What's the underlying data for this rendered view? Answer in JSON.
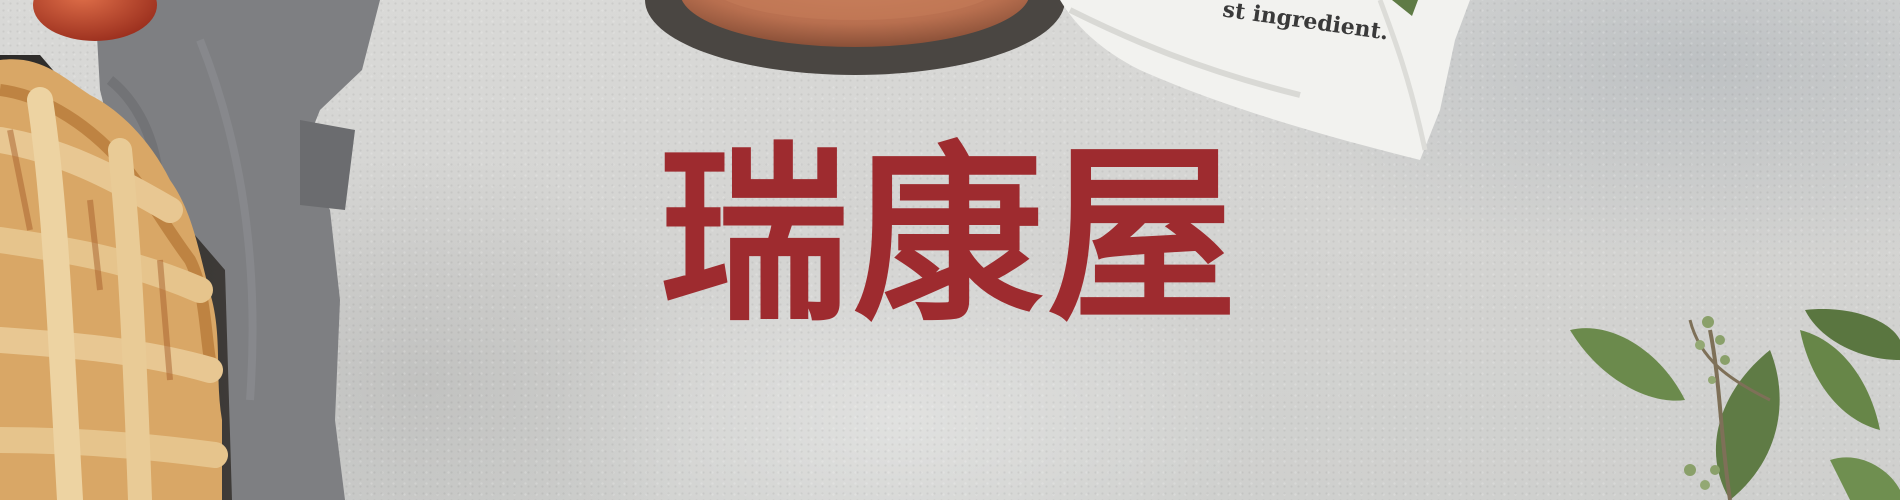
{
  "brand": {
    "name": "瑞康屋",
    "color": "#9e2b2f"
  },
  "towel": {
    "printed_text": "st ingredient."
  },
  "palette": {
    "background": "#d6d6d4",
    "crust": "#d9a766",
    "linen": "#7e7f82",
    "leaf": "#5f7b45"
  },
  "decor": [
    "pie-image",
    "linen-napkin-image",
    "clay-plate-image",
    "tea-towel-image",
    "eucalyptus-image",
    "apple-image"
  ]
}
